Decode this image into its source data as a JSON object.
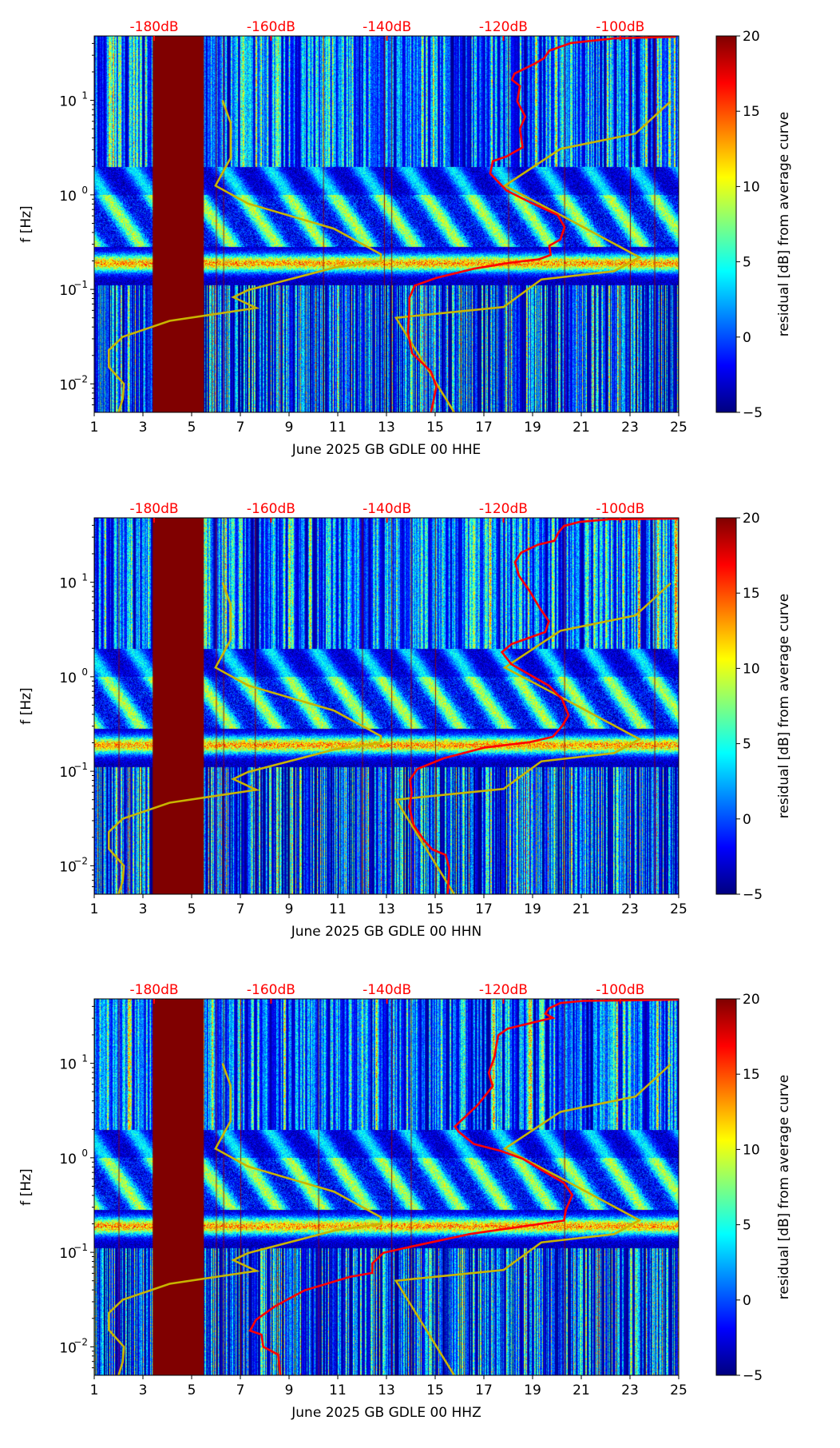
{
  "colors": {
    "reference_curves": "#c8b400",
    "average_curve": "#ff0000",
    "db_labels": "#ff0000",
    "gap": "#800000"
  },
  "chart_data": [
    {
      "type": "heatmap",
      "xlabel": "June 2025 GB GDLE 00 HHE",
      "ylabel": "f [Hz]",
      "xlim": [
        1,
        25
      ],
      "ylim": [
        0.005,
        48
      ],
      "yscale": "log",
      "x_ticks": [
        "1",
        "3",
        "5",
        "7",
        "9",
        "11",
        "13",
        "15",
        "17",
        "19",
        "21",
        "23",
        "25"
      ],
      "y_ticks": [
        {
          "base": "10",
          "exp": "1",
          "value": 10
        },
        {
          "base": "10",
          "exp": "0",
          "value": 1
        },
        {
          "base": "10",
          "exp": "−1",
          "value": 0.1
        },
        {
          "base": "10",
          "exp": "−2",
          "value": 0.01
        }
      ],
      "top_labels": [
        {
          "label": "-180dB",
          "x": 3.46
        },
        {
          "label": "-160dB",
          "x": 8.26
        },
        {
          "label": "-140dB",
          "x": 13.02
        },
        {
          "label": "-120dB",
          "x": 17.8
        },
        {
          "label": "-100dB",
          "x": 22.6
        }
      ],
      "colorbar": {
        "label": "residual [dB] from average curve",
        "range": [
          -5,
          20
        ],
        "ticks": [
          "20",
          "15",
          "10",
          "5",
          "0",
          "−5"
        ]
      },
      "gap_days": [
        3.4,
        5.5
      ],
      "marker_days": [
        6.0,
        6.3,
        10.4,
        12.9,
        13.2,
        18.0,
        20.3,
        23.0,
        24.0
      ],
      "low_noise_model": [
        [
          6.27,
          1.0
        ],
        [
          6.6,
          0.763
        ],
        [
          6.6,
          0.389
        ],
        [
          5.98,
          0.097
        ],
        [
          7.31,
          -0.092
        ],
        [
          10.85,
          -0.358
        ],
        [
          12.77,
          -0.628
        ],
        [
          12.77,
          -0.7
        ],
        [
          10.85,
          -0.771
        ],
        [
          7.31,
          -1.008
        ],
        [
          6.71,
          -1.083
        ],
        [
          7.66,
          -1.197
        ],
        [
          4.1,
          -1.333
        ],
        [
          2.17,
          -1.502
        ],
        [
          1.6,
          -1.642
        ],
        [
          1.6,
          -1.821
        ],
        [
          2.22,
          -2.0
        ],
        [
          2.17,
          -2.16
        ],
        [
          2.0,
          -2.3
        ]
      ],
      "high_noise_model": [
        [
          24.67,
          0.99
        ],
        [
          23.23,
          0.649
        ],
        [
          20.14,
          0.486
        ],
        [
          17.86,
          0.097
        ],
        [
          20.14,
          -0.212
        ],
        [
          23.39,
          -0.661
        ],
        [
          22.35,
          -0.807
        ],
        [
          19.36,
          -0.895
        ],
        [
          17.81,
          -1.187
        ],
        [
          13.39,
          -1.301
        ],
        [
          15.78,
          -2.3
        ]
      ],
      "average_curve": [
        [
          24.89,
          1.673
        ],
        [
          22.35,
          1.656
        ],
        [
          20.58,
          1.607
        ],
        [
          19.69,
          1.526
        ],
        [
          19.47,
          1.445
        ],
        [
          19.03,
          1.38
        ],
        [
          18.26,
          1.283
        ],
        [
          18.15,
          1.218
        ],
        [
          18.48,
          1.153
        ],
        [
          18.37,
          0.99
        ],
        [
          18.7,
          0.828
        ],
        [
          18.48,
          0.698
        ],
        [
          18.59,
          0.503
        ],
        [
          17.92,
          0.405
        ],
        [
          17.37,
          0.357
        ],
        [
          17.26,
          0.226
        ],
        [
          17.92,
          0.048
        ],
        [
          18.92,
          -0.082
        ],
        [
          20.03,
          -0.212
        ],
        [
          20.31,
          -0.342
        ],
        [
          20.14,
          -0.472
        ],
        [
          19.69,
          -0.537
        ],
        [
          19.74,
          -0.635
        ],
        [
          19.25,
          -0.683
        ],
        [
          18.15,
          -0.716
        ],
        [
          16.6,
          -0.781
        ],
        [
          15.05,
          -0.878
        ],
        [
          14.16,
          -0.96
        ],
        [
          13.94,
          -1.09
        ],
        [
          13.94,
          -1.22
        ],
        [
          13.88,
          -1.447
        ],
        [
          14.05,
          -1.675
        ],
        [
          14.83,
          -1.87
        ],
        [
          15.05,
          -2.03
        ],
        [
          14.83,
          -2.3
        ]
      ]
    },
    {
      "type": "heatmap",
      "xlabel": "June 2025 GB GDLE 00 HHN",
      "ylabel": "f [Hz]",
      "xlim": [
        1,
        25
      ],
      "ylim": [
        0.005,
        48
      ],
      "yscale": "log",
      "x_ticks": [
        "1",
        "3",
        "5",
        "7",
        "9",
        "11",
        "13",
        "15",
        "17",
        "19",
        "21",
        "23",
        "25"
      ],
      "y_ticks": [
        {
          "base": "10",
          "exp": "1",
          "value": 10
        },
        {
          "base": "10",
          "exp": "0",
          "value": 1
        },
        {
          "base": "10",
          "exp": "−1",
          "value": 0.1
        },
        {
          "base": "10",
          "exp": "−2",
          "value": 0.01
        }
      ],
      "top_labels": [
        {
          "label": "-180dB",
          "x": 3.46
        },
        {
          "label": "-160dB",
          "x": 8.26
        },
        {
          "label": "-140dB",
          "x": 13.02
        },
        {
          "label": "-120dB",
          "x": 17.8
        },
        {
          "label": "-100dB",
          "x": 22.6
        }
      ],
      "colorbar": {
        "label": "residual [dB] from average curve",
        "range": [
          -5,
          20
        ],
        "ticks": [
          "20",
          "15",
          "10",
          "5",
          "0",
          "−5"
        ]
      },
      "gap_days": [
        3.4,
        5.5
      ],
      "marker_days": [
        2.0,
        6.0,
        6.3,
        7.6,
        12.0,
        13.2,
        14.0,
        15.0,
        20.3,
        24.0
      ],
      "low_noise_model": [
        [
          6.27,
          1.0
        ],
        [
          6.6,
          0.763
        ],
        [
          6.6,
          0.389
        ],
        [
          5.98,
          0.097
        ],
        [
          7.31,
          -0.092
        ],
        [
          10.85,
          -0.358
        ],
        [
          12.77,
          -0.628
        ],
        [
          12.77,
          -0.7
        ],
        [
          10.85,
          -0.771
        ],
        [
          7.31,
          -1.008
        ],
        [
          6.71,
          -1.083
        ],
        [
          7.66,
          -1.197
        ],
        [
          4.1,
          -1.333
        ],
        [
          2.17,
          -1.502
        ],
        [
          1.6,
          -1.642
        ],
        [
          1.6,
          -1.821
        ],
        [
          2.22,
          -2.0
        ],
        [
          2.17,
          -2.16
        ],
        [
          2.0,
          -2.3
        ]
      ],
      "high_noise_model": [
        [
          24.67,
          0.99
        ],
        [
          23.23,
          0.649
        ],
        [
          20.14,
          0.486
        ],
        [
          17.86,
          0.097
        ],
        [
          20.14,
          -0.212
        ],
        [
          23.39,
          -0.661
        ],
        [
          22.35,
          -0.807
        ],
        [
          19.36,
          -0.895
        ],
        [
          17.81,
          -1.187
        ],
        [
          13.39,
          -1.301
        ],
        [
          15.78,
          -2.3
        ]
      ],
      "average_curve": [
        [
          25.0,
          1.674
        ],
        [
          22.14,
          1.666
        ],
        [
          20.91,
          1.637
        ],
        [
          20.29,
          1.595
        ],
        [
          20.06,
          1.524
        ],
        [
          19.9,
          1.439
        ],
        [
          19.21,
          1.396
        ],
        [
          18.52,
          1.311
        ],
        [
          18.28,
          1.211
        ],
        [
          18.44,
          1.069
        ],
        [
          18.9,
          0.899
        ],
        [
          19.29,
          0.729
        ],
        [
          19.67,
          0.587
        ],
        [
          19.52,
          0.473
        ],
        [
          18.13,
          0.345
        ],
        [
          17.74,
          0.26
        ],
        [
          18.13,
          0.132
        ],
        [
          18.9,
          0.019
        ],
        [
          19.67,
          -0.095
        ],
        [
          20.21,
          -0.237
        ],
        [
          20.48,
          -0.408
        ],
        [
          20.21,
          -0.522
        ],
        [
          19.83,
          -0.635
        ],
        [
          18.9,
          -0.692
        ],
        [
          17.05,
          -0.749
        ],
        [
          15.35,
          -0.863
        ],
        [
          14.27,
          -0.976
        ],
        [
          13.96,
          -1.09
        ],
        [
          14.04,
          -1.232
        ],
        [
          13.93,
          -1.374
        ],
        [
          14.12,
          -1.573
        ],
        [
          14.58,
          -1.743
        ],
        [
          14.89,
          -1.828
        ],
        [
          15.43,
          -1.885
        ],
        [
          15.58,
          -2.027
        ],
        [
          15.51,
          -2.297
        ]
      ]
    },
    {
      "type": "heatmap",
      "xlabel": "June 2025 GB GDLE 00 HHZ",
      "ylabel": "f [Hz]",
      "xlim": [
        1,
        25
      ],
      "ylim": [
        0.005,
        48
      ],
      "yscale": "log",
      "x_ticks": [
        "1",
        "3",
        "5",
        "7",
        "9",
        "11",
        "13",
        "15",
        "17",
        "19",
        "21",
        "23",
        "25"
      ],
      "y_ticks": [
        {
          "base": "10",
          "exp": "1",
          "value": 10
        },
        {
          "base": "10",
          "exp": "0",
          "value": 1
        },
        {
          "base": "10",
          "exp": "−1",
          "value": 0.1
        },
        {
          "base": "10",
          "exp": "−2",
          "value": 0.01
        }
      ],
      "top_labels": [
        {
          "label": "-180dB",
          "x": 3.46
        },
        {
          "label": "-160dB",
          "x": 8.26
        },
        {
          "label": "-140dB",
          "x": 13.02
        },
        {
          "label": "-120dB",
          "x": 17.8
        },
        {
          "label": "-100dB",
          "x": 22.6
        }
      ],
      "colorbar": {
        "label": "residual [dB] from average curve",
        "range": [
          -5,
          20
        ],
        "ticks": [
          "20",
          "15",
          "10",
          "5",
          "0",
          "−5"
        ]
      },
      "gap_days": [
        3.4,
        5.5
      ],
      "marker_days": [
        2.0,
        6.0,
        6.3,
        7.0,
        10.2,
        13.2,
        14.0,
        20.3
      ],
      "low_noise_model": [
        [
          6.27,
          1.0
        ],
        [
          6.6,
          0.763
        ],
        [
          6.6,
          0.389
        ],
        [
          5.98,
          0.097
        ],
        [
          7.31,
          -0.092
        ],
        [
          10.85,
          -0.358
        ],
        [
          12.77,
          -0.628
        ],
        [
          12.77,
          -0.7
        ],
        [
          10.85,
          -0.771
        ],
        [
          7.31,
          -1.008
        ],
        [
          6.71,
          -1.083
        ],
        [
          7.66,
          -1.197
        ],
        [
          4.1,
          -1.333
        ],
        [
          2.17,
          -1.502
        ],
        [
          1.6,
          -1.642
        ],
        [
          1.6,
          -1.821
        ],
        [
          2.22,
          -2.0
        ],
        [
          2.17,
          -2.16
        ],
        [
          2.0,
          -2.3
        ]
      ],
      "high_noise_model": [
        [
          24.67,
          0.99
        ],
        [
          23.23,
          0.649
        ],
        [
          20.14,
          0.486
        ],
        [
          17.86,
          0.097
        ],
        [
          20.14,
          -0.212
        ],
        [
          23.39,
          -0.661
        ],
        [
          22.35,
          -0.807
        ],
        [
          19.36,
          -0.895
        ],
        [
          17.81,
          -1.187
        ],
        [
          13.39,
          -1.301
        ],
        [
          15.78,
          -2.3
        ]
      ],
      "average_curve": [
        [
          25.0,
          1.674
        ],
        [
          21.06,
          1.66
        ],
        [
          20.14,
          1.637
        ],
        [
          19.67,
          1.581
        ],
        [
          19.52,
          1.524
        ],
        [
          19.83,
          1.481
        ],
        [
          19.36,
          1.453
        ],
        [
          17.98,
          1.367
        ],
        [
          17.59,
          1.297
        ],
        [
          17.51,
          1.183
        ],
        [
          17.44,
          1.069
        ],
        [
          17.2,
          0.899
        ],
        [
          17.36,
          0.757
        ],
        [
          16.74,
          0.558
        ],
        [
          15.81,
          0.331
        ],
        [
          15.97,
          0.274
        ],
        [
          16.59,
          0.146
        ],
        [
          17.67,
          0.075
        ],
        [
          18.59,
          -0.01
        ],
        [
          19.52,
          -0.152
        ],
        [
          20.29,
          -0.266
        ],
        [
          20.63,
          -0.394
        ],
        [
          20.37,
          -0.55
        ],
        [
          20.29,
          -0.664
        ],
        [
          18.75,
          -0.72
        ],
        [
          16.43,
          -0.806
        ],
        [
          14.12,
          -0.934
        ],
        [
          12.88,
          -1.005
        ],
        [
          12.42,
          -1.118
        ],
        [
          12.42,
          -1.218
        ],
        [
          11.49,
          -1.26
        ],
        [
          9.64,
          -1.402
        ],
        [
          8.41,
          -1.573
        ],
        [
          7.64,
          -1.715
        ],
        [
          7.4,
          -1.829
        ],
        [
          7.87,
          -1.871
        ],
        [
          7.94,
          -1.999
        ],
        [
          8.56,
          -2.084
        ],
        [
          8.64,
          -2.297
        ]
      ]
    }
  ]
}
